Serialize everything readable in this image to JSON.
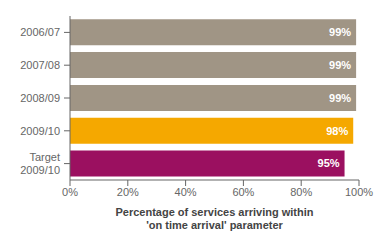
{
  "chart_data": {
    "type": "bar",
    "orientation": "horizontal",
    "categories": [
      "2006/07",
      "2007/08",
      "2008/09",
      "2009/10",
      "Target\n2009/10"
    ],
    "values": [
      99,
      99,
      99,
      98,
      95
    ],
    "value_labels": [
      "99%",
      "99%",
      "99%",
      "98%",
      "95%"
    ],
    "data_labels": true,
    "colors": [
      "#a09585",
      "#a09585",
      "#a09585",
      "#f5a800",
      "#9b1060"
    ],
    "xlabel": "Percentage of services arriving within\n'on time arrival' parameter",
    "xlim": [
      0,
      100
    ],
    "xticks": [
      {
        "value": 0,
        "label": "0%"
      },
      {
        "value": 20,
        "label": "20%"
      },
      {
        "value": 40,
        "label": "40%"
      },
      {
        "value": 60,
        "label": "60%"
      },
      {
        "value": 80,
        "label": "80%"
      },
      {
        "value": 100,
        "label": "100%"
      }
    ],
    "grid": false
  }
}
